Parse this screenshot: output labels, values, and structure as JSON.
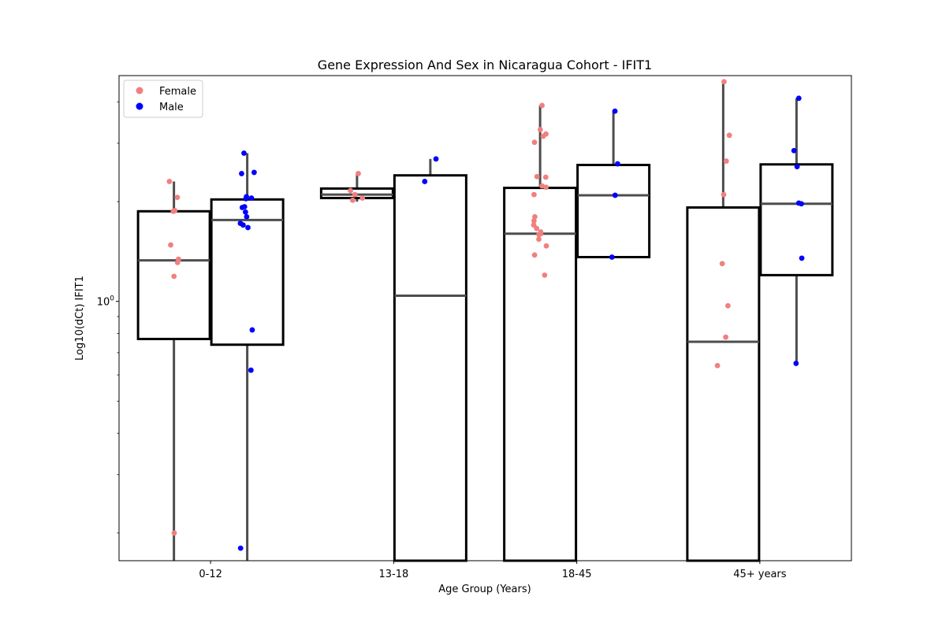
{
  "chart_data": {
    "type": "box",
    "title": "Gene Expression And Sex in Nicaragua Cohort - IFIT1",
    "xlabel": "Age Group (Years)",
    "ylabel": "Log10(dCt) IFIT1",
    "yscale": "log",
    "ylim": [
      0.165,
      4.8
    ],
    "ytick_labels": [
      {
        "value": 1,
        "label": "10^0"
      }
    ],
    "categories": [
      "0-12",
      "13-18",
      "18-45",
      "45+ years"
    ],
    "legend": {
      "position": "top-left",
      "entries": [
        {
          "name": "Female",
          "color": "#f08080"
        },
        {
          "name": "Male",
          "color": "#0000ff"
        }
      ]
    },
    "series": [
      {
        "name": "Female",
        "color": "#f08080",
        "boxes": [
          {
            "category": "0-12",
            "whisker_low": 0.165,
            "q1": 0.77,
            "median": 1.33,
            "q3": 1.87,
            "whisker_high": 2.3,
            "points": [
              2.3,
              2.06,
              1.88,
              1.87,
              1.48,
              1.34,
              1.31,
              1.19,
              0.2
            ]
          },
          {
            "category": "13-18",
            "whisker_low": 2.0,
            "q1": 2.05,
            "median": 2.1,
            "q3": 2.19,
            "whisker_high": 2.43,
            "points": [
              2.43,
              2.16,
              2.1,
              2.05,
              2.02
            ]
          },
          {
            "category": "18-45",
            "whisker_low": 0.165,
            "q1": 0.165,
            "median": 1.6,
            "q3": 2.2,
            "whisker_high": 3.9,
            "points": [
              3.9,
              3.3,
              3.2,
              3.15,
              3.02,
              2.38,
              2.37,
              2.23,
              2.21,
              2.1,
              1.8,
              1.75,
              1.7,
              1.66,
              1.62,
              1.6,
              1.59,
              1.54,
              1.47,
              1.38,
              1.2
            ]
          },
          {
            "category": "45+ years",
            "whisker_low": 0.165,
            "q1": 0.165,
            "median": 0.755,
            "q3": 1.92,
            "whisker_high": 4.6,
            "points": [
              4.6,
              3.17,
              2.65,
              2.1,
              1.3,
              0.97,
              0.78,
              0.64
            ]
          }
        ]
      },
      {
        "name": "Male",
        "color": "#0000ff",
        "boxes": [
          {
            "category": "0-12",
            "whisker_low": 0.165,
            "q1": 0.74,
            "median": 1.76,
            "q3": 2.03,
            "whisker_high": 2.8,
            "points": [
              2.8,
              2.45,
              2.43,
              2.07,
              2.05,
              2.04,
              1.93,
              1.92,
              1.86,
              1.8,
              1.72,
              1.7,
              1.67,
              0.82,
              0.62,
              0.18
            ]
          },
          {
            "category": "13-18",
            "whisker_low": 0.165,
            "q1": 0.165,
            "median": 1.04,
            "q3": 2.4,
            "whisker_high": 2.69,
            "points": [
              2.69,
              2.3
            ]
          },
          {
            "category": "18-45",
            "whisker_low": 1.36,
            "q1": 1.36,
            "median": 2.09,
            "q3": 2.58,
            "whisker_high": 3.75,
            "points": [
              3.75,
              2.6,
              2.09,
              1.36
            ]
          },
          {
            "category": "45+ years",
            "whisker_low": 0.65,
            "q1": 1.2,
            "median": 1.97,
            "q3": 2.59,
            "whisker_high": 4.1,
            "points": [
              4.1,
              2.85,
              2.55,
              1.98,
              1.97,
              1.35,
              0.65
            ]
          }
        ]
      }
    ]
  }
}
